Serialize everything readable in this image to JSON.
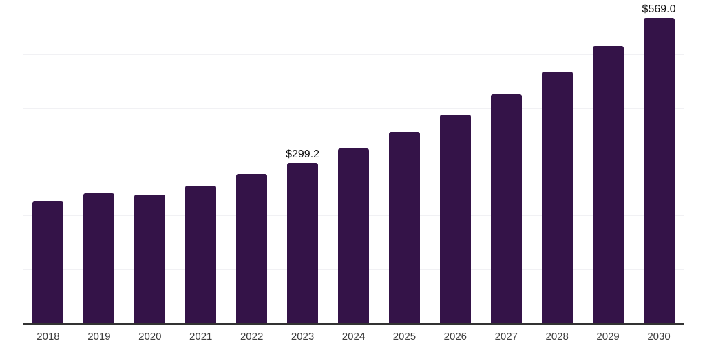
{
  "chart_data": {
    "type": "bar",
    "title": "",
    "xlabel": "",
    "ylabel": "",
    "categories": [
      "2018",
      "2019",
      "2020",
      "2021",
      "2022",
      "2023",
      "2024",
      "2025",
      "2026",
      "2027",
      "2028",
      "2029",
      "2030"
    ],
    "values": [
      227,
      242,
      240,
      256,
      278,
      299.2,
      326,
      356,
      388,
      427,
      469,
      517,
      569.0
    ],
    "data_labels": [
      "",
      "",
      "",
      "",
      "",
      "$299.2",
      "",
      "",
      "",
      "",
      "",
      "",
      "$569.0"
    ],
    "ylim": [
      0,
      600
    ],
    "grid_interval": 100,
    "grid": true,
    "legend": "none",
    "colors": {
      "bar": "#341348",
      "axis": "#333333",
      "grid": "#f1f1f4",
      "tick_text": "#3d3d3d",
      "label_text": "#111111"
    }
  }
}
